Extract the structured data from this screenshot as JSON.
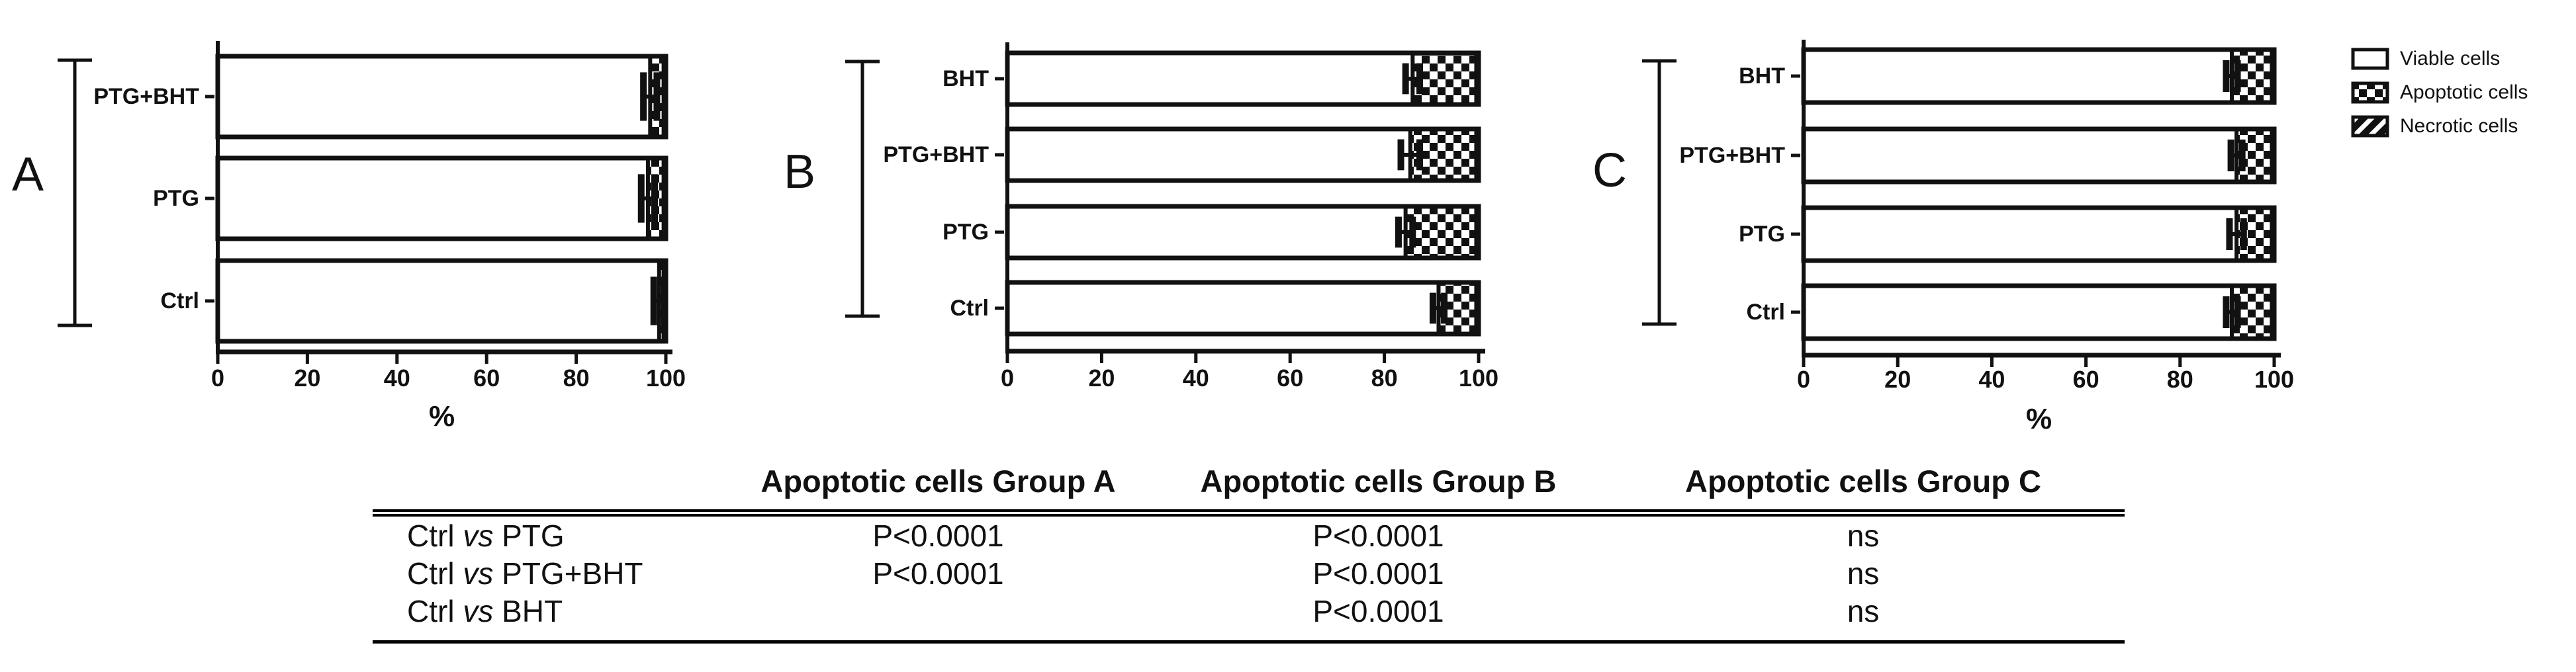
{
  "figure_title": "",
  "legend": {
    "items": [
      {
        "label": "Viable cells",
        "pattern": "solid-white"
      },
      {
        "label": "Apoptotic cells",
        "pattern": "checker"
      },
      {
        "label": "Necrotic cells",
        "pattern": "diagonal"
      }
    ]
  },
  "colors": {
    "ink": "#111111",
    "background": "#ffffff"
  },
  "chart_data": [
    {
      "id": "A",
      "panel_label": "A",
      "type": "bar",
      "orientation": "horizontal",
      "stacked": true,
      "categories": [
        "PTG+BHT",
        "PTG",
        "Ctrl"
      ],
      "series": [
        {
          "name": "Viable cells",
          "pattern": "solid-white",
          "values": [
            96.5,
            96,
            98.5
          ]
        },
        {
          "name": "Apoptotic cells",
          "pattern": "checker",
          "values": [
            3,
            3.5,
            1
          ]
        },
        {
          "name": "Necrotic cells",
          "pattern": "diagonal",
          "values": [
            0.5,
            0.5,
            0.5
          ]
        }
      ],
      "error": [
        1.5,
        1.5,
        1.2
      ],
      "xlabel": "%",
      "xticks": [
        0,
        20,
        40,
        60,
        80,
        100
      ],
      "xlim": [
        0,
        100
      ],
      "grid": false,
      "legend_position": "top-right-shared"
    },
    {
      "id": "B",
      "panel_label": "B",
      "type": "bar",
      "orientation": "horizontal",
      "stacked": true,
      "categories": [
        "BHT",
        "PTG+BHT",
        "PTG",
        "Ctrl"
      ],
      "series": [
        {
          "name": "Viable cells",
          "pattern": "solid-white",
          "values": [
            86,
            85.5,
            84.5,
            91.5
          ]
        },
        {
          "name": "Apoptotic cells",
          "pattern": "checker",
          "values": [
            13.5,
            14,
            15,
            8
          ]
        },
        {
          "name": "Necrotic cells",
          "pattern": "diagonal",
          "values": [
            0.5,
            0.5,
            0.5,
            0.5
          ]
        }
      ],
      "error": [
        1.5,
        2,
        1.5,
        1.2
      ],
      "xlabel": "",
      "xticks": [
        0,
        20,
        40,
        60,
        80,
        100
      ],
      "xlim": [
        0,
        100
      ],
      "grid": false,
      "legend_position": "top-right-shared"
    },
    {
      "id": "C",
      "panel_label": "C",
      "type": "bar",
      "orientation": "horizontal",
      "stacked": true,
      "categories": [
        "BHT",
        "PTG+BHT",
        "PTG",
        "Ctrl"
      ],
      "series": [
        {
          "name": "Viable cells",
          "pattern": "solid-white",
          "values": [
            91,
            92,
            92,
            91
          ]
        },
        {
          "name": "Apoptotic cells",
          "pattern": "checker",
          "values": [
            8.5,
            7.5,
            7.5,
            8.5
          ]
        },
        {
          "name": "Necrotic cells",
          "pattern": "diagonal",
          "values": [
            0.5,
            0.5,
            0.5,
            0.5
          ]
        }
      ],
      "error": [
        1.2,
        1.2,
        1.5,
        1.2
      ],
      "xlabel": "%",
      "xticks": [
        0,
        20,
        40,
        60,
        80,
        100
      ],
      "xlim": [
        0,
        100
      ],
      "grid": false,
      "legend_position": "top-right-shared"
    }
  ],
  "table": {
    "headers": [
      "",
      "Apoptotic cells Group A",
      "Apoptotic cells Group B",
      "Apoptotic cells Group C"
    ],
    "rows": [
      {
        "label_pre": "Ctrl ",
        "label_vs": "vs",
        "label_post": " PTG",
        "values": [
          "P<0.0001",
          "P<0.0001",
          "ns"
        ]
      },
      {
        "label_pre": "Ctrl ",
        "label_vs": "vs",
        "label_post": " PTG+BHT",
        "values": [
          "P<0.0001",
          "P<0.0001",
          "ns"
        ]
      },
      {
        "label_pre": "Ctrl ",
        "label_vs": "vs",
        "label_post": " BHT",
        "values": [
          "",
          "P<0.0001",
          "ns"
        ]
      }
    ]
  }
}
